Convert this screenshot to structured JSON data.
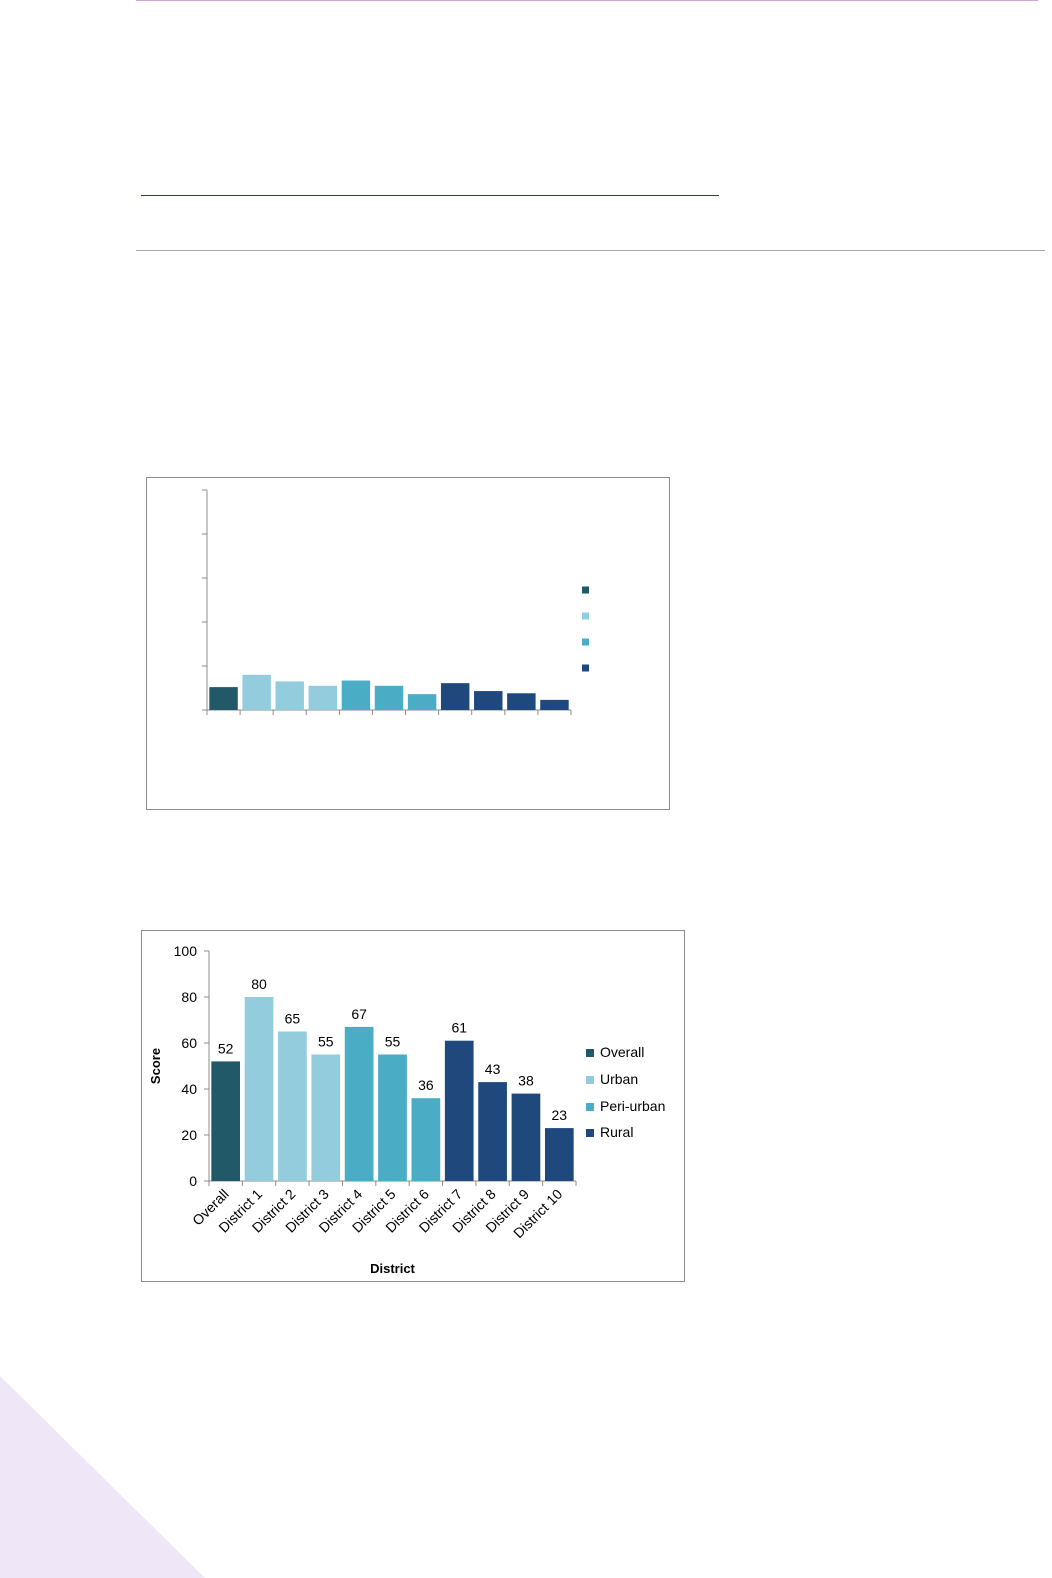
{
  "chart_data": [
    {
      "type": "bar",
      "categories": [
        "",
        "",
        "",
        "",
        "",
        "",
        "",
        "",
        "",
        "",
        ""
      ],
      "values": [
        52,
        80,
        65,
        55,
        67,
        55,
        36,
        61,
        43,
        38,
        23
      ],
      "bar_groups": [
        "Overall",
        "Urban",
        "Urban",
        "Urban",
        "Peri-urban",
        "Peri-urban",
        "Peri-urban",
        "Rural",
        "Rural",
        "Rural",
        "Rural"
      ],
      "legend": [
        {
          "name": "",
          "color": "#215968"
        },
        {
          "name": "",
          "color": "#93cddd"
        },
        {
          "name": "",
          "color": "#4bacc6"
        },
        {
          "name": "",
          "color": "#1f497d"
        }
      ],
      "title": "",
      "xlabel": "",
      "ylabel": "",
      "ylim": [
        0,
        500
      ],
      "yticks": [
        0,
        100,
        200,
        300,
        400,
        500
      ],
      "show_tick_labels": false,
      "show_data_labels": false,
      "grid": false,
      "legend_position": "right"
    },
    {
      "type": "bar",
      "categories": [
        "Overall",
        "District 1",
        "District 2",
        "District 3",
        "District 4",
        "District 5",
        "District 6",
        "District 7",
        "District 8",
        "District 9",
        "District 10"
      ],
      "values": [
        52,
        80,
        65,
        55,
        67,
        55,
        36,
        61,
        43,
        38,
        23
      ],
      "bar_groups": [
        "Overall",
        "Urban",
        "Urban",
        "Urban",
        "Peri-urban",
        "Peri-urban",
        "Peri-urban",
        "Rural",
        "Rural",
        "Rural",
        "Rural"
      ],
      "legend": [
        {
          "name": "Overall",
          "color": "#215968"
        },
        {
          "name": "Urban",
          "color": "#93cddd"
        },
        {
          "name": "Peri-urban",
          "color": "#4bacc6"
        },
        {
          "name": "Rural",
          "color": "#1f497d"
        }
      ],
      "title": "",
      "xlabel": "District",
      "ylabel": "Score",
      "ylim": [
        0,
        100
      ],
      "yticks": [
        0,
        20,
        40,
        60,
        80,
        100
      ],
      "show_tick_labels": true,
      "show_data_labels": true,
      "grid": false,
      "legend_position": "right"
    }
  ]
}
